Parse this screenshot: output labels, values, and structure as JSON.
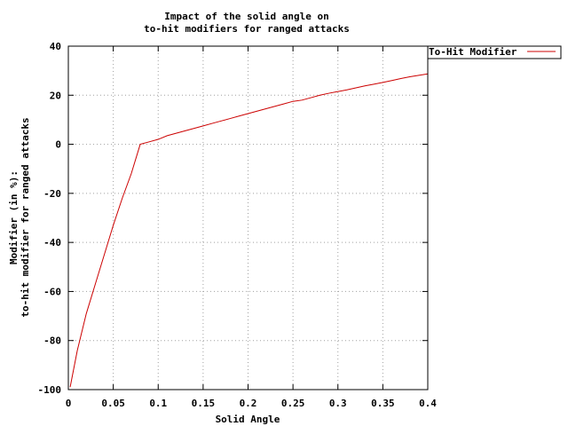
{
  "chart_data": {
    "type": "line",
    "title": [
      "Impact of the solid angle on",
      "to-hit modifiers for ranged attacks"
    ],
    "xlabel": "Solid Angle",
    "ylabel": [
      "Modifier (in %):",
      "to-hit modifier for ranged attacks"
    ],
    "xlim": [
      0,
      0.4
    ],
    "ylim": [
      -100,
      40
    ],
    "xticks": [
      0,
      0.05,
      0.1,
      0.15,
      0.2,
      0.25,
      0.3,
      0.35,
      0.4
    ],
    "xtick_labels": [
      "0",
      "0.05",
      "0.1",
      "0.15",
      "0.2",
      "0.25",
      "0.3",
      "0.35",
      "0.4"
    ],
    "yticks": [
      -100,
      -80,
      -60,
      -40,
      -20,
      0,
      20,
      40
    ],
    "ytick_labels": [
      "-100",
      "-80",
      "-60",
      "-40",
      "-20",
      "0",
      "20",
      "40"
    ],
    "grid": true,
    "legend_position": "top-right",
    "series": [
      {
        "name": "To-Hit Modifier",
        "color": "#cc0000",
        "x": [
          0.002,
          0.01,
          0.02,
          0.03,
          0.04,
          0.05,
          0.06,
          0.07,
          0.08,
          0.09,
          0.1,
          0.11,
          0.12,
          0.13,
          0.14,
          0.15,
          0.16,
          0.17,
          0.18,
          0.19,
          0.2,
          0.21,
          0.22,
          0.23,
          0.24,
          0.25,
          0.26,
          0.27,
          0.28,
          0.29,
          0.3,
          0.31,
          0.32,
          0.33,
          0.34,
          0.35,
          0.36,
          0.37,
          0.38,
          0.39,
          0.4
        ],
        "y": [
          -99,
          -84,
          -69,
          -57,
          -45,
          -33,
          -22,
          -12,
          0,
          1,
          2,
          3.5,
          4.5,
          5.5,
          6.5,
          7.5,
          8.5,
          9.5,
          10.5,
          11.5,
          12.5,
          13.5,
          14.5,
          15.5,
          16.5,
          17.5,
          18,
          19,
          20,
          20.8,
          21.5,
          22.2,
          23,
          23.8,
          24.5,
          25.2,
          26,
          26.8,
          27.5,
          28.1,
          28.7
        ]
      }
    ]
  }
}
